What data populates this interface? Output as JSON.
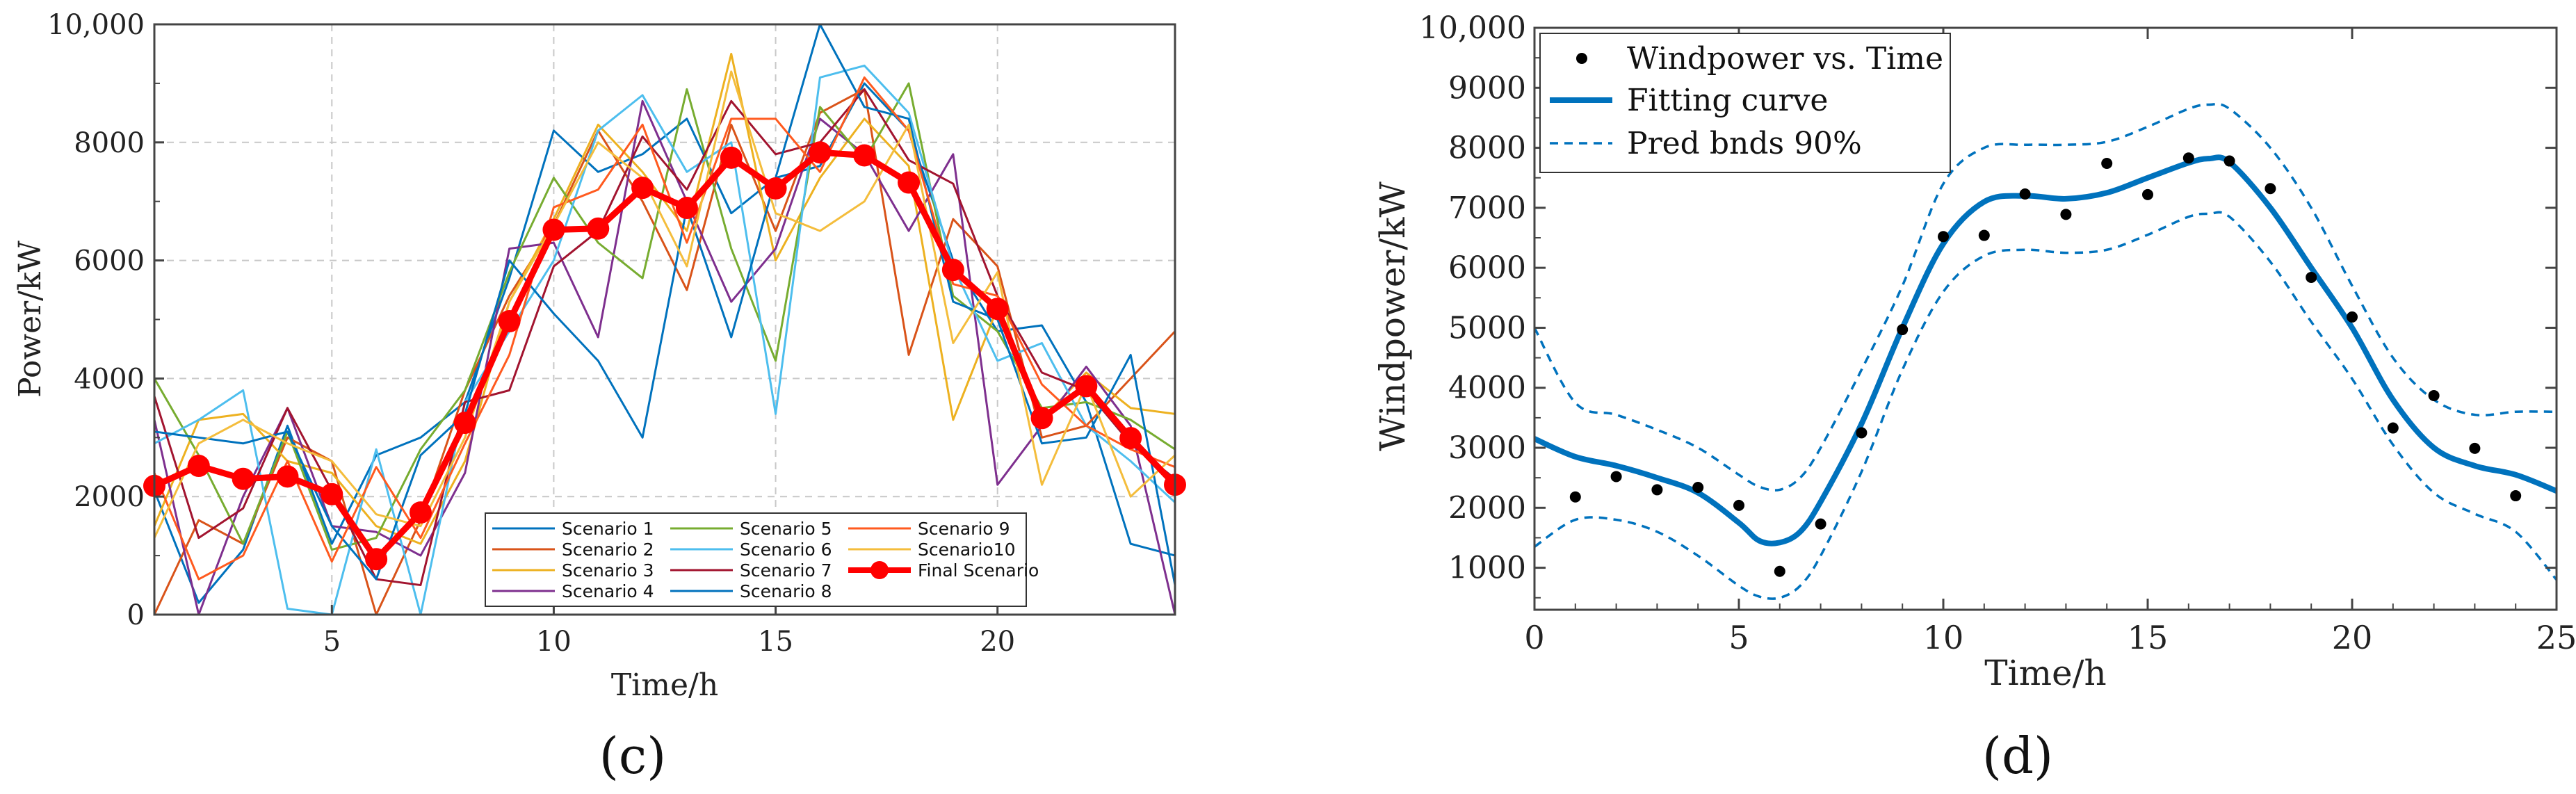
{
  "chart_data": [
    {
      "id": "c",
      "type": "line",
      "caption": "(c)",
      "title": "",
      "xlabel": "Time/h",
      "ylabel": "Power/kW",
      "xlim": [
        1,
        24
      ],
      "ylim": [
        0,
        10000
      ],
      "xticks": [
        5,
        10,
        15,
        20
      ],
      "yticks": [
        0,
        2000,
        4000,
        6000,
        8000,
        10000
      ],
      "ytick_labels": [
        "0",
        "2000",
        "4000",
        "6000",
        "8000",
        "10,000"
      ],
      "grid": true,
      "legend_position": "bottom-right",
      "x": [
        1,
        2,
        3,
        4,
        5,
        6,
        7,
        8,
        9,
        10,
        11,
        12,
        13,
        14,
        15,
        16,
        17,
        18,
        19,
        20,
        21,
        22,
        23,
        24
      ],
      "series": [
        {
          "name": "Scenario 1",
          "color": "#0072bd",
          "values": [
            2100,
            200,
            1100,
            3200,
            1200,
            2700,
            3000,
            3600,
            5700,
            8200,
            7500,
            7800,
            8400,
            6800,
            7400,
            7600,
            9000,
            8200,
            6000,
            4800,
            4900,
            3600,
            1200,
            1000
          ]
        },
        {
          "name": "Scenario 2",
          "color": "#d95319",
          "values": [
            0,
            1600,
            1200,
            3000,
            2600,
            0,
            1600,
            3800,
            5400,
            6600,
            8200,
            7000,
            5500,
            8300,
            6500,
            8500,
            8900,
            4400,
            6700,
            5900,
            3000,
            3200,
            4000,
            4800
          ]
        },
        {
          "name": "Scenario 3",
          "color": "#edb120",
          "values": [
            1500,
            3300,
            3400,
            2600,
            2400,
            1500,
            1200,
            2600,
            5300,
            6700,
            8300,
            7500,
            6500,
            9500,
            6000,
            7400,
            8400,
            7600,
            3300,
            5200,
            3300,
            4100,
            3500,
            3400
          ]
        },
        {
          "name": "Scenario 4",
          "color": "#7e2f8e",
          "values": [
            3300,
            0,
            2000,
            3500,
            1500,
            1400,
            1000,
            2400,
            6200,
            6300,
            4700,
            8700,
            7000,
            5300,
            6200,
            8400,
            7800,
            6500,
            7800,
            2200,
            3200,
            4200,
            3200,
            0
          ]
        },
        {
          "name": "Scenario 5",
          "color": "#77ac30",
          "values": [
            4000,
            2700,
            1200,
            3100,
            1100,
            1300,
            2800,
            3800,
            5800,
            7400,
            6300,
            5700,
            8900,
            6200,
            4300,
            8600,
            7700,
            9000,
            5400,
            4800,
            3500,
            3600,
            3300,
            2800
          ]
        },
        {
          "name": "Scenario 6",
          "color": "#4dbeee",
          "values": [
            2900,
            3300,
            3800,
            100,
            0,
            2800,
            0,
            3600,
            4800,
            6000,
            8200,
            8800,
            7500,
            8000,
            3400,
            9100,
            9300,
            8500,
            5900,
            4300,
            4600,
            3200,
            2600,
            1900
          ]
        },
        {
          "name": "Scenario 7",
          "color": "#a2142f",
          "values": [
            3700,
            1300,
            1800,
            3500,
            2100,
            600,
            500,
            3600,
            3800,
            5900,
            6500,
            8100,
            7200,
            8700,
            7800,
            8000,
            8900,
            7700,
            7300,
            5400,
            4100,
            3800,
            2900,
            2300
          ]
        },
        {
          "name": "Scenario 8",
          "color": "#0072bd",
          "values": [
            3100,
            3000,
            2900,
            3100,
            1500,
            600,
            2700,
            3400,
            6000,
            5100,
            4300,
            3000,
            6900,
            4700,
            7400,
            10000,
            8600,
            8400,
            5300,
            5000,
            2900,
            3000,
            4400,
            500
          ]
        },
        {
          "name": "Scenario 9",
          "color": "#ff5a1f",
          "values": [
            2400,
            600,
            1000,
            2600,
            900,
            2500,
            1300,
            2900,
            4400,
            6900,
            7200,
            8300,
            6300,
            8400,
            8400,
            7500,
            9100,
            8200,
            5600,
            5400,
            3900,
            3200,
            2800,
            2500
          ]
        },
        {
          "name": "Scenario10",
          "color": "#f4bd3c",
          "values": [
            1300,
            2900,
            3300,
            2900,
            2600,
            1700,
            1500,
            3000,
            5300,
            6600,
            8000,
            7400,
            5900,
            9200,
            6800,
            6500,
            7000,
            8300,
            4600,
            5800,
            2200,
            3900,
            2000,
            2700
          ]
        },
        {
          "name": "Final Scenario",
          "color": "#ff0000",
          "marker": "circle",
          "values": [
            2180,
            2520,
            2300,
            2340,
            2040,
            940,
            1730,
            3250,
            4970,
            6520,
            6540,
            7230,
            6890,
            7740,
            7220,
            7830,
            7780,
            7320,
            5840,
            5180,
            3330,
            3870,
            2990,
            2200
          ]
        }
      ]
    },
    {
      "id": "d",
      "type": "line",
      "caption": "(d)",
      "title": "",
      "xlabel": "Time/h",
      "ylabel": "Windpower/kW",
      "xlim": [
        0,
        25
      ],
      "ylim": [
        300,
        10000
      ],
      "xticks": [
        0,
        5,
        10,
        15,
        20,
        25
      ],
      "yticks": [
        1000,
        2000,
        3000,
        4000,
        5000,
        6000,
        7000,
        8000,
        9000,
        10000
      ],
      "ytick_labels": [
        "1000",
        "2000",
        "3000",
        "4000",
        "5000",
        "6000",
        "7000",
        "8000",
        "9000",
        "10,000"
      ],
      "grid": false,
      "legend_position": "top-left",
      "legend": [
        "Windpower vs. Time",
        "Fitting curve",
        "Pred bnds 90%"
      ],
      "scatter": {
        "name": "Windpower vs. Time",
        "color": "#000000",
        "x": [
          1,
          2,
          3,
          4,
          5,
          6,
          7,
          8,
          9,
          10,
          11,
          12,
          13,
          14,
          15,
          16,
          17,
          18,
          19,
          20,
          21,
          22,
          23,
          24
        ],
        "y": [
          2180,
          2520,
          2300,
          2340,
          2040,
          940,
          1730,
          3250,
          4970,
          6520,
          6540,
          7230,
          6890,
          7740,
          7220,
          7830,
          7780,
          7320,
          5840,
          5180,
          3330,
          3870,
          2990,
          2200
        ]
      },
      "fit": {
        "name": "Fitting curve",
        "color": "#0072bd",
        "x": [
          0,
          1,
          2,
          3,
          4,
          5,
          5.5,
          6,
          6.5,
          7,
          8,
          9,
          10,
          11,
          12,
          13,
          14,
          15,
          16,
          16.5,
          17,
          18,
          19,
          20,
          21,
          22,
          23,
          24,
          25
        ],
        "y": [
          3150,
          2850,
          2700,
          2500,
          2250,
          1750,
          1450,
          1420,
          1600,
          2100,
          3400,
          5000,
          6400,
          7100,
          7200,
          7150,
          7250,
          7500,
          7750,
          7820,
          7760,
          7000,
          6000,
          5000,
          3800,
          3000,
          2700,
          2550,
          2280
        ]
      },
      "pred_upper": {
        "name": "Pred bnds 90%",
        "color": "#0072bd",
        "x": [
          0,
          1,
          2,
          3,
          4,
          5,
          5.5,
          6,
          6.5,
          7,
          8,
          9,
          10,
          11,
          12,
          13,
          14,
          15,
          16,
          16.5,
          17,
          18,
          19,
          20,
          21,
          22,
          23,
          24,
          25
        ],
        "y": [
          5000,
          3750,
          3550,
          3300,
          3000,
          2550,
          2350,
          2300,
          2500,
          3000,
          4300,
          5700,
          7400,
          8000,
          8050,
          8050,
          8100,
          8350,
          8650,
          8720,
          8650,
          8000,
          7000,
          5700,
          4500,
          3800,
          3550,
          3600,
          3600
        ]
      },
      "pred_lower": {
        "name": "Pred bnds 90% lower",
        "color": "#0072bd",
        "x": [
          0,
          1,
          2,
          3,
          4,
          5,
          5.5,
          6,
          6.5,
          7,
          8,
          9,
          10,
          11,
          12,
          13,
          14,
          15,
          16,
          16.5,
          17,
          18,
          19,
          20,
          21,
          22,
          23,
          24,
          25
        ],
        "y": [
          1350,
          1800,
          1800,
          1600,
          1200,
          700,
          520,
          500,
          700,
          1200,
          2600,
          4300,
          5600,
          6200,
          6300,
          6250,
          6300,
          6550,
          6850,
          6900,
          6850,
          6100,
          5100,
          4150,
          3050,
          2250,
          1900,
          1600,
          800
        ]
      }
    }
  ]
}
